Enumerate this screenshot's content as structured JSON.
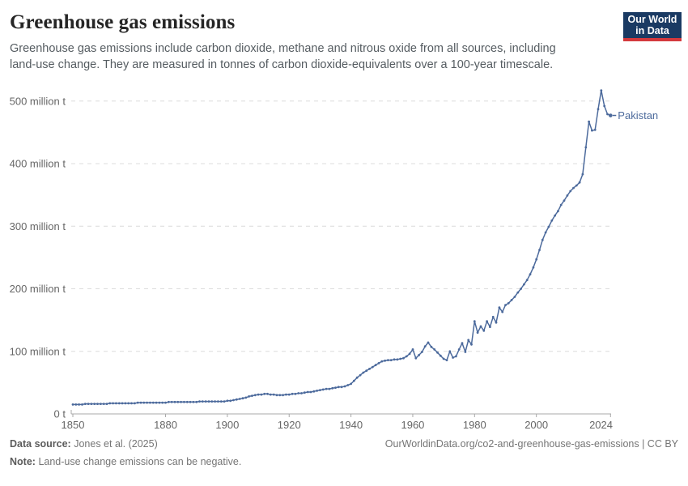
{
  "header": {
    "title": "Greenhouse gas emissions",
    "subtitle": "Greenhouse gas emissions include carbon dioxide, methane and nitrous oxide from all sources, including land-use change. They are measured in tonnes of carbon dioxide-equivalents over a 100-year timescale.",
    "logo": {
      "line1": "Our World",
      "line2": "in Data"
    }
  },
  "chart_data": {
    "type": "line",
    "title": "Greenhouse gas emissions",
    "entity": "Pakistan",
    "end_label": "Pakistan",
    "unit": "tonnes of CO2-equivalents",
    "grid": "dashed-horizontal",
    "legend_position": "end-of-line",
    "xlim": [
      1850,
      2024
    ],
    "ylim": [
      0,
      530
    ],
    "xticks": [
      1850,
      1880,
      1900,
      1920,
      1940,
      1960,
      1980,
      2000,
      2024
    ],
    "yticks": [
      {
        "value": 0,
        "label": "0 t"
      },
      {
        "value": 100,
        "label": "100 million t"
      },
      {
        "value": 200,
        "label": "200 million t"
      },
      {
        "value": 300,
        "label": "300 million t"
      },
      {
        "value": 400,
        "label": "400 million t"
      },
      {
        "value": 500,
        "label": "500 million t"
      }
    ],
    "years": [
      1850,
      1851,
      1852,
      1853,
      1854,
      1855,
      1856,
      1857,
      1858,
      1859,
      1860,
      1861,
      1862,
      1863,
      1864,
      1865,
      1866,
      1867,
      1868,
      1869,
      1870,
      1871,
      1872,
      1873,
      1874,
      1875,
      1876,
      1877,
      1878,
      1879,
      1880,
      1881,
      1882,
      1883,
      1884,
      1885,
      1886,
      1887,
      1888,
      1889,
      1890,
      1891,
      1892,
      1893,
      1894,
      1895,
      1896,
      1897,
      1898,
      1899,
      1900,
      1901,
      1902,
      1903,
      1904,
      1905,
      1906,
      1907,
      1908,
      1909,
      1910,
      1911,
      1912,
      1913,
      1914,
      1915,
      1916,
      1917,
      1918,
      1919,
      1920,
      1921,
      1922,
      1923,
      1924,
      1925,
      1926,
      1927,
      1928,
      1929,
      1930,
      1931,
      1932,
      1933,
      1934,
      1935,
      1936,
      1937,
      1938,
      1939,
      1940,
      1941,
      1942,
      1943,
      1944,
      1945,
      1946,
      1947,
      1948,
      1949,
      1950,
      1951,
      1952,
      1953,
      1954,
      1955,
      1956,
      1957,
      1958,
      1959,
      1960,
      1961,
      1962,
      1963,
      1964,
      1965,
      1966,
      1967,
      1968,
      1969,
      1970,
      1971,
      1972,
      1973,
      1974,
      1975,
      1976,
      1977,
      1978,
      1979,
      1980,
      1981,
      1982,
      1983,
      1984,
      1985,
      1986,
      1987,
      1988,
      1989,
      1990,
      1991,
      1992,
      1993,
      1994,
      1995,
      1996,
      1997,
      1998,
      1999,
      2000,
      2001,
      2002,
      2003,
      2004,
      2005,
      2006,
      2007,
      2008,
      2009,
      2010,
      2011,
      2012,
      2013,
      2014,
      2015,
      2016,
      2017,
      2018,
      2019,
      2020,
      2021,
      2022,
      2023,
      2024
    ],
    "series": [
      {
        "name": "Pakistan",
        "color": "#4c6a9c",
        "values": [
          15,
          15,
          15,
          15,
          16,
          16,
          16,
          16,
          16,
          16,
          16,
          16,
          17,
          17,
          17,
          17,
          17,
          17,
          17,
          17,
          17,
          18,
          18,
          18,
          18,
          18,
          18,
          18,
          18,
          18,
          18,
          19,
          19,
          19,
          19,
          19,
          19,
          19,
          19,
          19,
          19,
          20,
          20,
          20,
          20,
          20,
          20,
          20,
          20,
          20,
          21,
          21,
          22,
          23,
          24,
          25,
          26,
          28,
          29,
          30,
          31,
          31,
          32,
          32,
          31,
          31,
          30,
          30,
          30,
          31,
          31,
          32,
          32,
          33,
          33,
          34,
          35,
          35,
          36,
          37,
          38,
          39,
          40,
          40,
          41,
          42,
          43,
          43,
          44,
          46,
          48,
          53,
          58,
          62,
          66,
          69,
          72,
          75,
          78,
          81,
          84,
          85,
          86,
          86,
          87,
          87,
          88,
          89,
          92,
          96,
          103,
          89,
          94,
          99,
          108,
          114,
          107,
          103,
          98,
          93,
          88,
          86,
          100,
          90,
          92,
          103,
          113,
          99,
          118,
          111,
          148,
          130,
          140,
          133,
          148,
          139,
          155,
          146,
          170,
          163,
          174,
          177,
          182,
          187,
          194,
          200,
          207,
          214,
          223,
          234,
          247,
          262,
          278,
          290,
          299,
          309,
          317,
          324,
          334,
          341,
          349,
          356,
          361,
          365,
          370,
          383,
          426,
          467,
          453,
          454,
          487,
          517,
          492,
          479,
          477
        ]
      }
    ]
  },
  "footer": {
    "datasource_label": "Data source:",
    "datasource_value": "Jones et al. (2025)",
    "citation": "OurWorldinData.org/co2-and-greenhouse-gas-emissions | CC BY",
    "note_label": "Note:",
    "note_value": "Land-use change emissions can be negative."
  },
  "colors": {
    "line": "#4c6a9c",
    "grid": "#dcdcdc",
    "axis": "#a8a8a8",
    "tick_text": "#666666",
    "logo_bg": "#1a3a63",
    "logo_red": "#d4393d"
  }
}
